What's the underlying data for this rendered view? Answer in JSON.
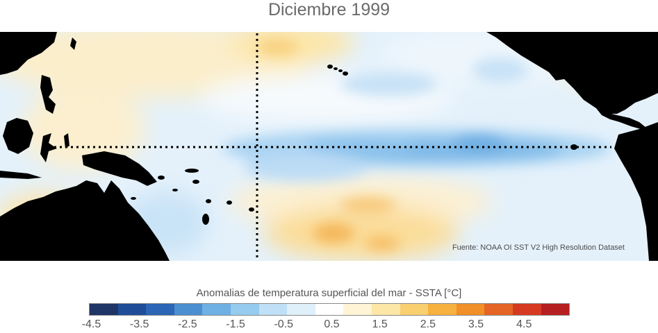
{
  "title": "Diciembre 1999",
  "source_note": "Fuente: NOAA OI SST V2 High Resolution Dataset",
  "colorbar": {
    "title": "Anomalias de temperatura superficial del mar - SSTA  [°C]",
    "colors": [
      "#1f3566",
      "#1f4d97",
      "#2b65b5",
      "#4a8fd0",
      "#6fb0e4",
      "#95cbef",
      "#bfe0f6",
      "#dff0fb",
      "#ffffff",
      "#fff5d6",
      "#fde7a6",
      "#f9cf6f",
      "#f6b13f",
      "#f18f28",
      "#e56526",
      "#d53a21",
      "#b61f20"
    ],
    "tick_labels": [
      "-4.5",
      "-3.5",
      "-2.5",
      "-1.5",
      "-0.5",
      "0.5",
      "1.5",
      "2.5",
      "3.5",
      "4.5"
    ],
    "tick_values": [
      -4.5,
      -3.5,
      -2.5,
      -1.5,
      -0.5,
      0.5,
      1.5,
      2.5,
      3.5,
      4.5
    ],
    "range": [
      -4.5,
      4.5
    ]
  },
  "map": {
    "ocean_base_color": "#e4f1fb",
    "land_color": "#000000",
    "gridline_style": "dotted"
  }
}
